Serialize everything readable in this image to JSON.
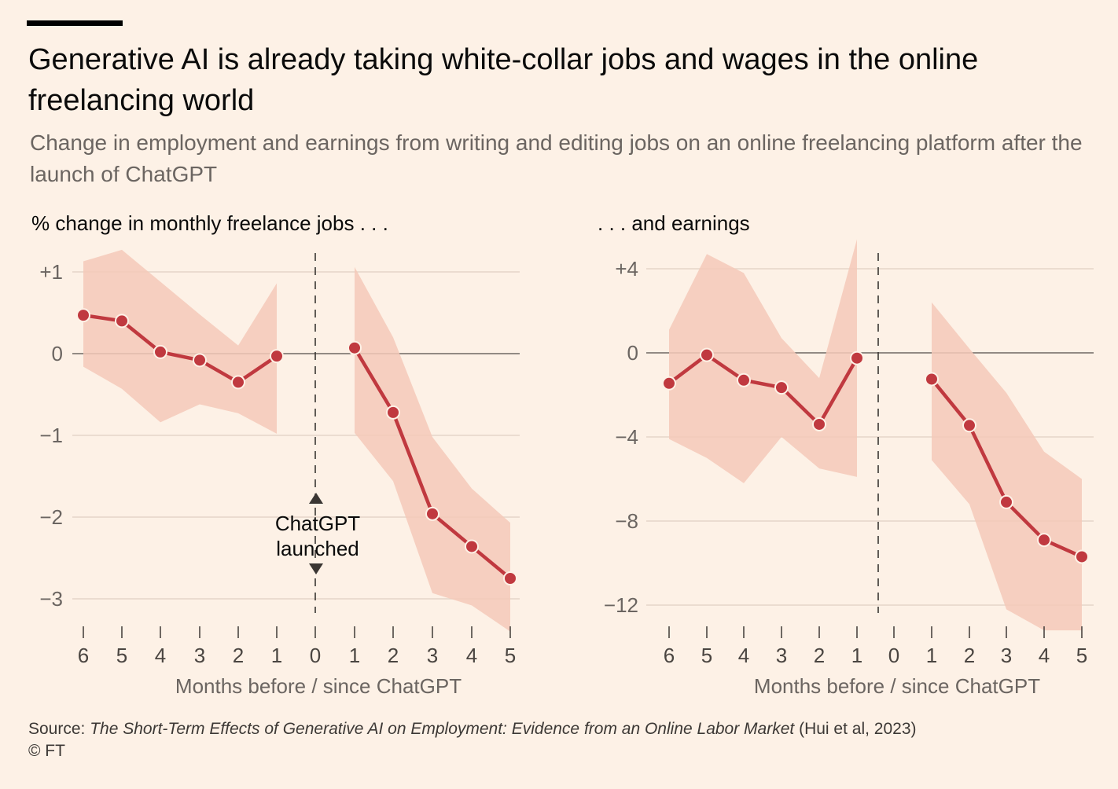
{
  "header": {
    "title": "Generative AI is already taking white-collar jobs and wages in the online freelancing world",
    "subtitle": "Change in employment and earnings from writing and editing jobs on an online freelancing platform after the launch of ChatGPT"
  },
  "footer": {
    "source_prefix": "Source: ",
    "source_title": "The Short-Term Effects of Generative AI on Employment: Evidence from an Online Labor Market",
    "source_suffix": " (Hui et al, 2023)",
    "copyright": "© FT"
  },
  "annotation": {
    "line1": "ChatGPT",
    "line2": "launched"
  },
  "colors": {
    "background": "#fdf1e6",
    "line": "#c0393f",
    "band": "#f5c9b8",
    "grid": "#e5d6c8",
    "zero": "#6e6864"
  },
  "chart_data": [
    {
      "type": "line",
      "title": "% change in monthly freelance jobs . . .",
      "xlabel": "Months before / since ChatGPT",
      "ylim": [
        -3.4,
        1.3
      ],
      "yticks": [
        1,
        0,
        -1,
        -2,
        -3
      ],
      "ytick_labels": [
        "+1",
        "0",
        "−1",
        "−2",
        "−3"
      ],
      "x_labels": [
        "6",
        "5",
        "4",
        "3",
        "2",
        "1",
        "0",
        "1",
        "2",
        "3",
        "4",
        "5"
      ],
      "before": {
        "points": [
          0.47,
          0.4,
          0.02,
          -0.08,
          -0.35,
          -0.03
        ],
        "upper": [
          1.13,
          1.27,
          0.88,
          0.48,
          0.1,
          0.86
        ],
        "lower": [
          -0.16,
          -0.43,
          -0.84,
          -0.62,
          -0.73,
          -0.98
        ]
      },
      "after": {
        "points": [
          0.07,
          -0.72,
          -1.96,
          -2.36,
          -2.75
        ],
        "upper": [
          1.06,
          0.2,
          -1.02,
          -1.65,
          -2.07
        ],
        "lower": [
          -0.97,
          -1.56,
          -2.93,
          -3.08,
          -3.4
        ]
      }
    },
    {
      "type": "line",
      "title": ". . . and earnings",
      "xlabel": "Months before / since ChatGPT",
      "ylim": [
        -13.2,
        5.4
      ],
      "yticks": [
        4,
        0,
        -4,
        -8,
        -12
      ],
      "ytick_labels": [
        "+4",
        "0",
        "−4",
        "−8",
        "−12"
      ],
      "x_labels": [
        "6",
        "5",
        "4",
        "3",
        "2",
        "1",
        "0",
        "1",
        "2",
        "3",
        "4",
        "5"
      ],
      "before": {
        "points": [
          -1.45,
          -0.1,
          -1.3,
          -1.65,
          -3.4,
          -0.25
        ],
        "upper": [
          1.1,
          4.7,
          3.8,
          0.7,
          -1.2,
          5.4
        ],
        "lower": [
          -4.1,
          -5.0,
          -6.2,
          -4.0,
          -5.5,
          -5.9
        ]
      },
      "after": {
        "points": [
          -1.25,
          -3.45,
          -7.1,
          -8.9,
          -9.7
        ],
        "upper": [
          2.4,
          0.2,
          -1.9,
          -4.7,
          -6.0
        ],
        "lower": [
          -5.1,
          -7.2,
          -12.2,
          -13.2,
          -13.2
        ]
      }
    }
  ]
}
